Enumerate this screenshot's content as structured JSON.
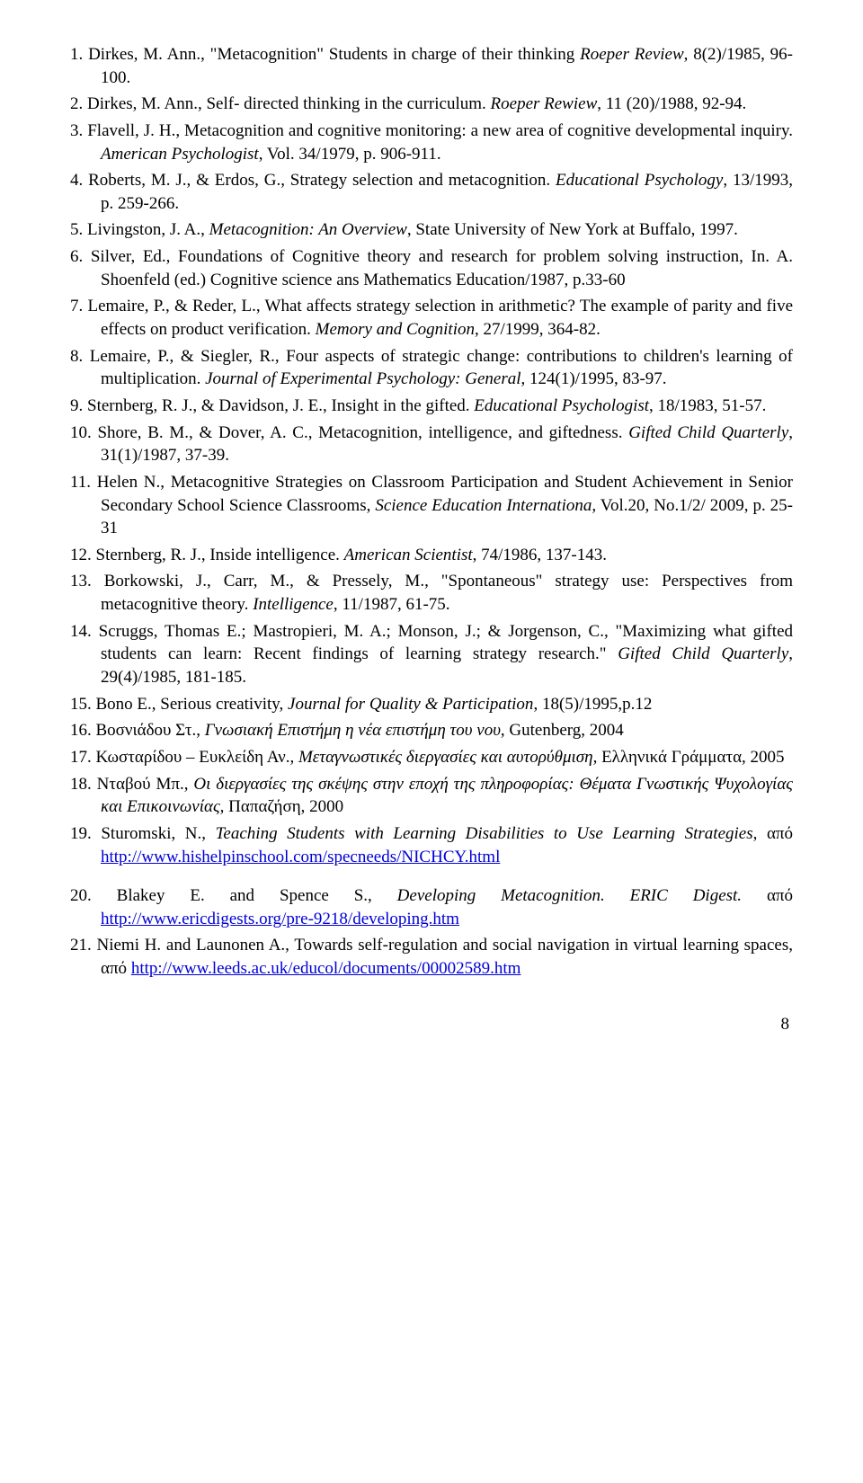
{
  "page_number": "8",
  "refs": [
    {
      "n": "1.",
      "segs": [
        {
          "t": "Dirkes, M. Ann., \"Metacognition\" Students in charge of their thinking "
        },
        {
          "t": "Roeper Review",
          "i": true
        },
        {
          "t": ", 8(2)/1985, 96-100."
        }
      ]
    },
    {
      "n": "2.",
      "segs": [
        {
          "t": "Dirkes, M. Ann., Self- directed thinking in the curriculum. "
        },
        {
          "t": "Roeper Rewiew",
          "i": true
        },
        {
          "t": ", 11 (20)/1988, 92-94."
        }
      ]
    },
    {
      "n": "3.",
      "segs": [
        {
          "t": "Flavell, J. H., Metacognition and cognitive monitoring: a new area of cognitive developmental inquiry. "
        },
        {
          "t": "American Psychologist",
          "i": true
        },
        {
          "t": ", Vol. 34/1979, p. 906-911."
        }
      ]
    },
    {
      "n": "4.",
      "segs": [
        {
          "t": "Roberts, M. J., & Erdos, G., Strategy selection and metacognition. "
        },
        {
          "t": "Educational Psychology",
          "i": true
        },
        {
          "t": ", 13/1993, p. 259-266."
        }
      ]
    },
    {
      "n": "5.",
      "segs": [
        {
          "t": "Livingston, J. A., "
        },
        {
          "t": "Metacognition: An Overview",
          "i": true
        },
        {
          "t": ", State University of New York at Buffalo, 1997."
        }
      ]
    },
    {
      "n": "6.",
      "segs": [
        {
          "t": "Silver, Ed., Foundations of Cognitive theory and research for problem solving instruction, In. A. Shoenfeld (ed.) Cognitive science ans Mathematics Education/1987, p.33-60"
        }
      ]
    },
    {
      "n": "7.",
      "segs": [
        {
          "t": "Lemaire, P., & Reder, L., What affects strategy selection in arithmetic? The example of parity and five effects on product verification. "
        },
        {
          "t": "Memory and Cognition",
          "i": true
        },
        {
          "t": ", 27/1999, 364-82."
        }
      ]
    },
    {
      "n": "8.",
      "segs": [
        {
          "t": "Lemaire, P., & Siegler, R., Four aspects of strategic change: contributions to children's learning of multiplication. "
        },
        {
          "t": "Journal of Experimental Psychology: General",
          "i": true
        },
        {
          "t": ", 124(1)/1995, 83-97."
        }
      ]
    },
    {
      "n": "9.",
      "segs": [
        {
          "t": "Sternberg, R. J., & Davidson, J. E., Insight in the gifted. "
        },
        {
          "t": "Educational Psychologist",
          "i": true
        },
        {
          "t": ", 18/1983, 51-57."
        }
      ]
    },
    {
      "n": "10.",
      "segs": [
        {
          "t": "Shore, B. M., & Dover, A. C., Metacognition, intelligence, and giftedness. "
        },
        {
          "t": "Gifted Child Quarterly",
          "i": true
        },
        {
          "t": ", 31(1)/1987, 37-39."
        }
      ]
    },
    {
      "n": "11.",
      "segs": [
        {
          "t": "Helen N., Metacognitive Strategies on Classroom Participation and Student Achievement in Senior Secondary School Science Classrooms, "
        },
        {
          "t": "Science Education Internationa,",
          "i": true
        },
        {
          "t": "  Vol.20, No.1/2/ 2009, p. 25-31"
        }
      ]
    },
    {
      "n": "12.",
      "segs": [
        {
          "t": "Sternberg, R. J., Inside intelligence. "
        },
        {
          "t": "American Scientist",
          "i": true
        },
        {
          "t": ", 74/1986, 137-143."
        }
      ]
    },
    {
      "n": "13.",
      "segs": [
        {
          "t": "Borkowski, J., Carr, M., & Pressely, M., \"Spontaneous\" strategy use: Perspectives from metacognitive theory. "
        },
        {
          "t": "Intelligence",
          "i": true
        },
        {
          "t": ", 11/1987, 61-75."
        }
      ]
    },
    {
      "n": "14.",
      "segs": [
        {
          "t": "Scruggs, Thomas E.; Mastropieri, M. A.; Monson, J.; & Jorgenson, C., \"Maximizing what gifted students can learn: Recent findings of learning strategy research.\" "
        },
        {
          "t": "Gifted Child Quarterly",
          "i": true
        },
        {
          "t": ", 29(4)/1985, 181-185."
        }
      ]
    },
    {
      "n": "15.",
      "segs": [
        {
          "t": "Bono E., Serious creativity, "
        },
        {
          "t": "Journal for Quality & Participation",
          "i": true
        },
        {
          "t": ", 18(5)/1995,p.12"
        }
      ]
    },
    {
      "n": "16.",
      "segs": [
        {
          "t": "Βοσνιάδου Στ., "
        },
        {
          "t": "Γνωσιακή Επιστήμη η νέα επιστήμη του νου",
          "i": true
        },
        {
          "t": ", Gutenberg, 2004"
        }
      ]
    },
    {
      "n": "17.",
      "segs": [
        {
          "t": "Κωσταρίδου – Ευκλείδη Αν., "
        },
        {
          "t": "Μεταγνωστικές διεργασίες και αυτορύθμιση",
          "i": true
        },
        {
          "t": ", Ελληνικά Γράμματα, 2005"
        }
      ]
    },
    {
      "n": "18.",
      "segs": [
        {
          "t": "Νταβού Μπ., "
        },
        {
          "t": "Οι διεργασίες της σκέψης στην εποχή της πληροφορίας: Θέματα Γνωστικής Ψυχολογίας και Επικοινωνίας",
          "i": true
        },
        {
          "t": ", Παπαζήση, 2000"
        }
      ]
    },
    {
      "n": "19.",
      "segs": [
        {
          "t": "Sturomski, N., "
        },
        {
          "t": "Teaching Students with Learning Disabilities to Use Learning Strategies",
          "i": true
        },
        {
          "t": ", από "
        },
        {
          "t": "http://www.hishelpinschool.com/specneeds/NICHCY.html",
          "link": true
        }
      ]
    },
    {
      "n": "20.",
      "break": true,
      "segs": [
        {
          "t": "Blakey E. and Spence S., "
        },
        {
          "t": "Developing Metacognition. ERIC Digest.",
          "i": true
        },
        {
          "t": " από "
        },
        {
          "t": "http://www.ericdigests.org/pre-9218/developing.htm",
          "link": true
        }
      ]
    },
    {
      "n": "21.",
      "segs": [
        {
          "t": "Niemi H. and Launonen A., Towards self-regulation and social navigation in virtual learning spaces, από "
        },
        {
          "t": "http://www.leeds.ac.uk/educol/documents/00002589.htm",
          "link": true
        }
      ]
    }
  ]
}
